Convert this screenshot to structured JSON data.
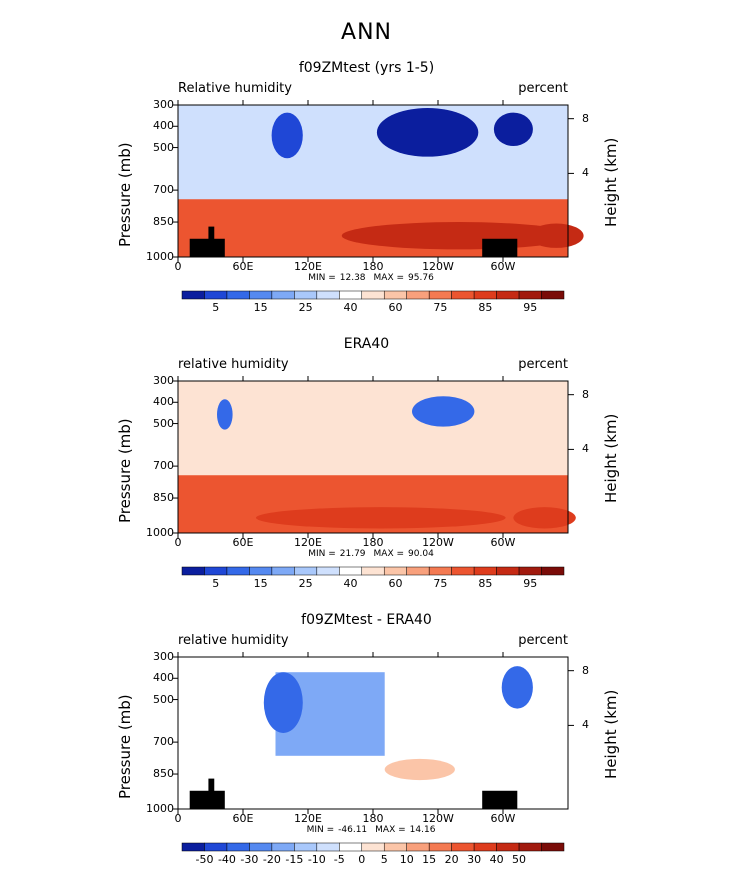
{
  "page": {
    "title": "ANN"
  },
  "chart_data": [
    {
      "type": "heatmap",
      "title": "f09ZMtest (yrs 1-5)",
      "left_label": "Relative humidity",
      "right_label": "percent",
      "ylabel": "Pressure (mb)",
      "ylabel_right": "Height (km)",
      "xticks": [
        "0",
        "60E",
        "120E",
        "180",
        "120W",
        "60W"
      ],
      "yticks": [
        "300",
        "400",
        "500",
        "700",
        "850",
        "1000"
      ],
      "yticks_right": [
        "8",
        "4"
      ],
      "min_label": "MIN =",
      "min_value": "12.38",
      "max_label": "MAX =",
      "max_value": "95.76",
      "colorbar_labels": [
        "5",
        "15",
        "25",
        "40",
        "60",
        "75",
        "85",
        "95"
      ],
      "colorbar_colors": [
        "#0b1e9e",
        "#1f47d6",
        "#3469e8",
        "#5589f0",
        "#7ea9f6",
        "#a9c8fb",
        "#cfe0fd",
        "#ffffff",
        "#fde3d3",
        "#fbc5a8",
        "#f8a07c",
        "#f47a52",
        "#ec5530",
        "#de3c1d",
        "#c52a14",
        "#a11a0e",
        "#7a0c08"
      ],
      "contours": [
        {
          "level": 1,
          "cx": 0.28,
          "cy": 0.2,
          "rx": 0.04,
          "ry": 0.15
        },
        {
          "level": 0,
          "cx": 0.64,
          "cy": 0.18,
          "rx": 0.13,
          "ry": 0.16
        },
        {
          "level": 0,
          "cx": 0.86,
          "cy": 0.16,
          "rx": 0.05,
          "ry": 0.11
        },
        {
          "level": 14,
          "cx": 0.72,
          "cy": 0.86,
          "rx": 0.3,
          "ry": 0.09
        },
        {
          "level": 14,
          "cx": 0.97,
          "cy": 0.86,
          "rx": 0.07,
          "ry": 0.08
        }
      ]
    },
    {
      "type": "heatmap",
      "title": "ERA40",
      "left_label": "relative humidity",
      "right_label": "percent",
      "ylabel": "Pressure (mb)",
      "ylabel_right": "Height (km)",
      "xticks": [
        "0",
        "60E",
        "120E",
        "180",
        "120W",
        "60W"
      ],
      "yticks": [
        "300",
        "400",
        "500",
        "700",
        "850",
        "1000"
      ],
      "yticks_right": [
        "8",
        "4"
      ],
      "min_label": "MIN =",
      "min_value": "21.79",
      "max_label": "MAX =",
      "max_value": "90.04",
      "colorbar_labels": [
        "5",
        "15",
        "25",
        "40",
        "60",
        "75",
        "85",
        "95"
      ],
      "colorbar_colors": [
        "#0b1e9e",
        "#1f47d6",
        "#3469e8",
        "#5589f0",
        "#7ea9f6",
        "#a9c8fb",
        "#cfe0fd",
        "#ffffff",
        "#fde3d3",
        "#fbc5a8",
        "#f8a07c",
        "#f47a52",
        "#ec5530",
        "#de3c1d",
        "#c52a14",
        "#a11a0e",
        "#7a0c08"
      ],
      "contours": [
        {
          "level": 2,
          "cx": 0.68,
          "cy": 0.2,
          "rx": 0.08,
          "ry": 0.1
        },
        {
          "level": 2,
          "cx": 0.12,
          "cy": 0.22,
          "rx": 0.02,
          "ry": 0.1
        },
        {
          "level": 13,
          "cx": 0.52,
          "cy": 0.9,
          "rx": 0.32,
          "ry": 0.07
        },
        {
          "level": 13,
          "cx": 0.94,
          "cy": 0.9,
          "rx": 0.08,
          "ry": 0.07
        }
      ]
    },
    {
      "type": "heatmap",
      "title": "f09ZMtest - ERA40",
      "left_label": "relative humidity",
      "right_label": "percent",
      "ylabel": "Pressure (mb)",
      "ylabel_right": "Height (km)",
      "xticks": [
        "0",
        "60E",
        "120E",
        "180",
        "120W",
        "60W"
      ],
      "yticks": [
        "300",
        "400",
        "500",
        "700",
        "850",
        "1000"
      ],
      "yticks_right": [
        "8",
        "4"
      ],
      "min_label": "MIN =",
      "min_value": "-46.11",
      "max_label": "MAX =",
      "max_value": "14.16",
      "colorbar_labels": [
        "-50",
        "-40",
        "-30",
        "-20",
        "-15",
        "-10",
        "-5",
        "0",
        "5",
        "10",
        "15",
        "20",
        "30",
        "40",
        "50"
      ],
      "colorbar_colors": [
        "#0b1e9e",
        "#1f47d6",
        "#3469e8",
        "#5589f0",
        "#7ea9f6",
        "#a9c8fb",
        "#cfe0fd",
        "#ffffff",
        "#fde3d3",
        "#fbc5a8",
        "#f8a07c",
        "#f47a52",
        "#ec5530",
        "#de3c1d",
        "#c52a14",
        "#a11a0e",
        "#7a0c08"
      ],
      "contours": [
        {
          "level": 2,
          "cx": 0.27,
          "cy": 0.3,
          "rx": 0.05,
          "ry": 0.2
        },
        {
          "level": 2,
          "cx": 0.87,
          "cy": 0.2,
          "rx": 0.04,
          "ry": 0.14
        },
        {
          "level": 9,
          "cx": 0.62,
          "cy": 0.74,
          "rx": 0.09,
          "ry": 0.07
        }
      ]
    }
  ]
}
